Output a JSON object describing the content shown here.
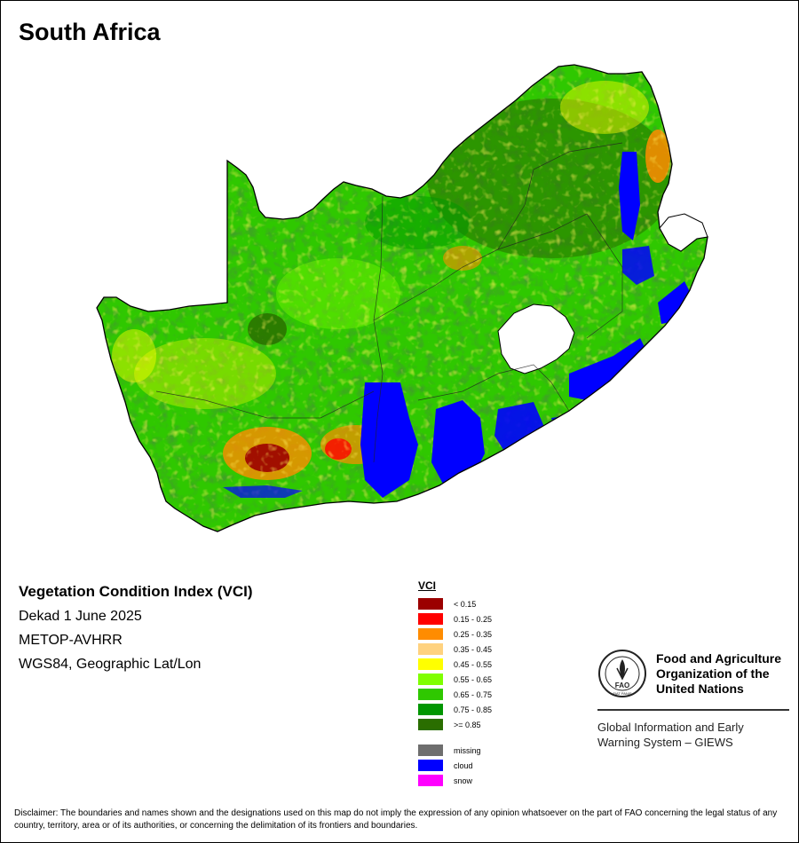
{
  "map": {
    "title": "South Africa",
    "info": {
      "index_title": "Vegetation Condition Index (VCI)",
      "period": "Dekad 1 June 2025",
      "sensor": "METOP-AVHRR",
      "projection": "WGS84, Geographic Lat/Lon"
    },
    "legend": {
      "title": "VCI",
      "classes": [
        {
          "label": "< 0.15",
          "color": "#9b0000"
        },
        {
          "label": "0.15 - 0.25",
          "color": "#ff0000"
        },
        {
          "label": "0.25 - 0.35",
          "color": "#ff8c00"
        },
        {
          "label": "0.35 - 0.45",
          "color": "#ffd27f"
        },
        {
          "label": "0.45 - 0.55",
          "color": "#ffff00"
        },
        {
          "label": "0.55 - 0.65",
          "color": "#7fff00"
        },
        {
          "label": "0.65 - 0.75",
          "color": "#2fc800"
        },
        {
          "label": "0.75 - 0.85",
          "color": "#009600"
        },
        {
          "label": ">= 0.85",
          "color": "#2a6e00"
        }
      ],
      "extra": [
        {
          "label": "missing",
          "color": "#6e6e6e"
        },
        {
          "label": "cloud",
          "color": "#0000ff"
        },
        {
          "label": "snow",
          "color": "#ff00ff"
        }
      ]
    },
    "org": {
      "name_line1": "Food and Agriculture",
      "name_line2": "Organization of the",
      "name_line3": "United Nations",
      "logo_text": "FAO",
      "logo_motto": "FIAT PANIS",
      "system_line1": "Global Information and Early",
      "system_line2": "Warning System – GIEWS"
    },
    "disclaimer": "Disclaimer: The boundaries and names shown and the designations used on this map do not imply the expression of any opinion whatsoever on the part of FAO concerning the legal status of any country, territory, area or of its authorities, or concerning the delimitation of its frontiers and boundaries."
  }
}
